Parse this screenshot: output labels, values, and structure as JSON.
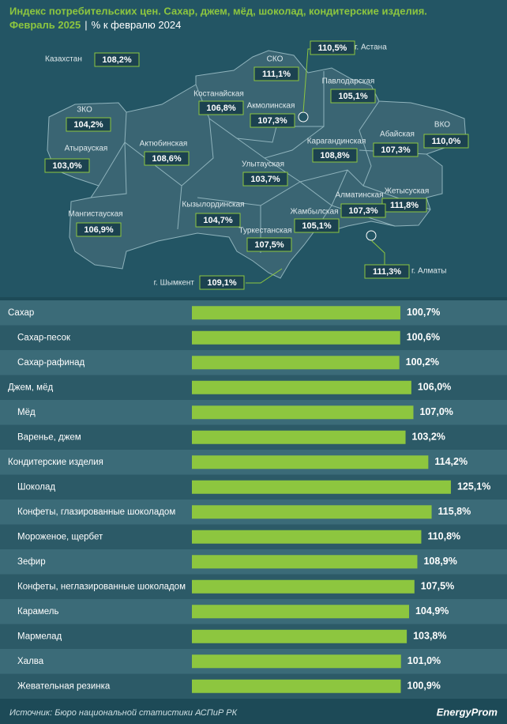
{
  "header": {
    "title": "Индекс потребительских цен. Сахар, джем, мёд, шоколад, кондитерские изделия.",
    "period": "Февраль 2025",
    "subtitle": "% к февралю 2024"
  },
  "map": {
    "regions": [
      {
        "name": "Казахстан",
        "value": "108,2%"
      },
      {
        "name": "СКО",
        "value": "111,1%"
      },
      {
        "name": "г. Астана",
        "value": "110,5%"
      },
      {
        "name": "Павлодарская",
        "value": "105,1%"
      },
      {
        "name": "Костанайская",
        "value": "106,8%"
      },
      {
        "name": "Акмолинская",
        "value": "107,3%"
      },
      {
        "name": "ЗКО",
        "value": "104,2%"
      },
      {
        "name": "Абайская",
        "value": "107,3%"
      },
      {
        "name": "ВКО",
        "value": "110,0%"
      },
      {
        "name": "Актюбинская",
        "value": "108,6%"
      },
      {
        "name": "Карагандинская",
        "value": "108,8%"
      },
      {
        "name": "Атырауская",
        "value": "103,0%"
      },
      {
        "name": "Улытауская",
        "value": "103,7%"
      },
      {
        "name": "Жетысуская",
        "value": "111,8%"
      },
      {
        "name": "Алматинская",
        "value": "107,3%"
      },
      {
        "name": "Кызылординская",
        "value": "104,7%"
      },
      {
        "name": "Мангистауская",
        "value": "106,9%"
      },
      {
        "name": "Жамбылская",
        "value": "105,1%"
      },
      {
        "name": "Туркестанская",
        "value": "107,5%"
      },
      {
        "name": "г. Алматы",
        "value": "111,3%"
      },
      {
        "name": "г. Шымкент",
        "value": "109,1%"
      }
    ]
  },
  "chart_data": {
    "type": "bar",
    "orientation": "horizontal",
    "categories": [
      "Сахар",
      "Сахар-песок",
      "Сахар-рафинад",
      "Джем, мёд",
      "Мёд",
      "Варенье, джем",
      "Кондитерские изделия",
      "Шоколад",
      "Конфеты, глазированные шоколадом",
      "Мороженое, щербет",
      "Зефир",
      "Конфеты, неглазированные шоколадом",
      "Карамель",
      "Мармелад",
      "Халва",
      "Жевательная резинка"
    ],
    "levels": [
      0,
      1,
      1,
      0,
      1,
      1,
      0,
      1,
      1,
      1,
      1,
      1,
      1,
      1,
      1,
      1
    ],
    "values": [
      100.7,
      100.6,
      100.2,
      106.0,
      107.0,
      103.2,
      114.2,
      125.1,
      115.8,
      110.8,
      108.9,
      107.5,
      104.9,
      103.8,
      101.0,
      100.9
    ],
    "value_labels": [
      "100,7%",
      "100,6%",
      "100,2%",
      "106,0%",
      "107,0%",
      "103,2%",
      "114,2%",
      "125,1%",
      "115,8%",
      "110,8%",
      "108,9%",
      "107,5%",
      "104,9%",
      "103,8%",
      "101,0%",
      "100,9%"
    ],
    "color": "#8dc63f",
    "xlim": [
      0,
      140
    ]
  },
  "footer": {
    "source": "Источник: Бюро национальной статистики АСПиР РК",
    "logo": "EnergyProm"
  }
}
